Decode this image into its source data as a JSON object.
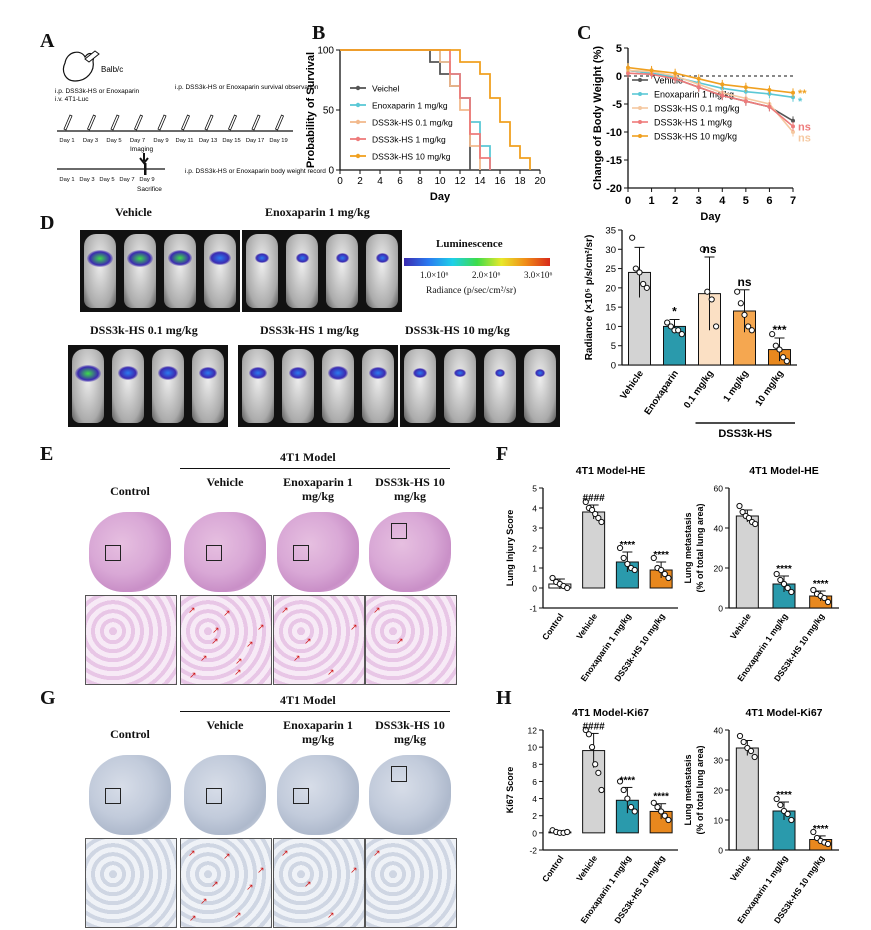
{
  "labels": {
    "A": "A",
    "B": "B",
    "C": "C",
    "D": "D",
    "E": "E",
    "F": "F",
    "G": "G",
    "H": "H"
  },
  "panelA": {
    "mouse": "Balb/c",
    "drug_text": "i.p. DSS3k-HS or Enoxaparin",
    "iv_text": "i.v. 4T1-Luc",
    "survival_text": "i.p. DSS3k-HS or Enoxaparin survival observation",
    "days_top": [
      "Day 1",
      "Day 3",
      "Day 5",
      "Day 7",
      "Day 9",
      "Day 11",
      "Day 13",
      "Day 15",
      "Day 17",
      "Day 19"
    ],
    "imaging": "Imaging",
    "sacrifice": "Sacrifice",
    "days_bottom": [
      "Day 1",
      "Day 3",
      "Day 5",
      "Day 7",
      "Day 9"
    ],
    "record_text": "i.p. DSS3k-HS or Enoxaparin body weight record"
  },
  "panelD": {
    "groups": [
      "Vehicle",
      "Enoxaparin 1 mg/kg",
      "DSS3k-HS 0.1 mg/kg",
      "DSS3k-HS 1 mg/kg",
      "DSS3k-HS 10 mg/kg"
    ],
    "scale_title": "Luminescence",
    "scale_ticks": [
      "1.0×10⁶",
      "2.0×10⁶",
      "3.0×10⁶"
    ],
    "scale_unit": "Radiance (p/sec/cm²/sr)"
  },
  "panelE": {
    "header": "4T1 Model",
    "cols": [
      "Control",
      "Vehicle",
      "Enoxaparin 1 mg/kg",
      "DSS3k-HS 10 mg/kg"
    ]
  },
  "panelG": {
    "header": "4T1 Model",
    "cols": [
      "Control",
      "Vehicle",
      "Enoxaparin 1 mg/kg",
      "DSS3k-HS 10 mg/kg"
    ]
  },
  "chart_data": [
    {
      "id": "B",
      "type": "line",
      "xlabel": "Day",
      "ylabel": "Probability of Survival",
      "xlim": [
        0,
        20
      ],
      "ylim": [
        0,
        100
      ],
      "xticks": [
        0,
        2,
        4,
        6,
        8,
        10,
        12,
        14,
        16,
        18,
        20
      ],
      "yticks": [
        0,
        50,
        100
      ],
      "series": [
        {
          "name": "Veichel",
          "color": "#555555",
          "x": [
            0,
            9,
            10,
            11,
            12,
            13,
            13
          ],
          "y": [
            100,
            90,
            80,
            70,
            60,
            50,
            0
          ]
        },
        {
          "name": "Enoxaparin 1 mg/kg",
          "color": "#5bc8d6",
          "x": [
            0,
            10,
            11,
            12,
            13,
            14,
            15
          ],
          "y": [
            100,
            90,
            80,
            60,
            40,
            20,
            0
          ]
        },
        {
          "name": "DSS3k-HS 0.1 mg/kg",
          "color": "#f2b98c",
          "x": [
            0,
            10,
            11,
            12,
            13,
            14
          ],
          "y": [
            100,
            90,
            70,
            50,
            20,
            0
          ]
        },
        {
          "name": "DSS3k-HS 1 mg/kg",
          "color": "#ee7b7b",
          "x": [
            0,
            11,
            12,
            13,
            14,
            15
          ],
          "y": [
            100,
            80,
            60,
            30,
            10,
            0
          ]
        },
        {
          "name": "DSS3k-HS 10 mg/kg",
          "color": "#f0a020",
          "x": [
            0,
            12,
            14,
            15,
            16,
            17,
            18,
            19
          ],
          "y": [
            100,
            90,
            80,
            60,
            40,
            20,
            10,
            0
          ]
        }
      ]
    },
    {
      "id": "C",
      "type": "line",
      "xlabel": "Day",
      "ylabel": "Change of Body Weight (%)",
      "xlim": [
        0,
        7
      ],
      "ylim": [
        -20,
        5
      ],
      "xticks": [
        0,
        1,
        2,
        3,
        4,
        5,
        6,
        7
      ],
      "yticks": [
        5,
        0,
        -5,
        -10,
        -15,
        -20
      ],
      "x": [
        0,
        1,
        2,
        3,
        4,
        5,
        6,
        7
      ],
      "series": [
        {
          "name": "Vehicle",
          "color": "#555555",
          "values": [
            1,
            0.5,
            -0.5,
            -2,
            -3.5,
            -4.5,
            -5.5,
            -8
          ]
        },
        {
          "name": "Enoxaparin 1 mg/kg",
          "color": "#5bc8d6",
          "values": [
            1,
            0.5,
            -0.2,
            -1.2,
            -2.2,
            -2.8,
            -3.2,
            -3.8
          ]
        },
        {
          "name": "DSS3k-HS 0.1 mg/kg",
          "color": "#f5c8a0",
          "values": [
            1,
            0.8,
            0,
            -1.5,
            -3,
            -4,
            -5,
            -10
          ]
        },
        {
          "name": "DSS3k-HS 1 mg/kg",
          "color": "#ee7b7b",
          "values": [
            0.5,
            0.3,
            -0.5,
            -2,
            -3.5,
            -4.5,
            -5.5,
            -9
          ]
        },
        {
          "name": "DSS3k-HS 10 mg/kg",
          "color": "#f0a020",
          "values": [
            1.5,
            1,
            0.5,
            -0.5,
            -1.5,
            -2,
            -2.5,
            -3
          ]
        }
      ],
      "annotations": [
        {
          "text": "**",
          "y": -3,
          "color": "#f0a020"
        },
        {
          "text": "*",
          "y": -4.5,
          "color": "#5bc8d6"
        },
        {
          "text": "ns",
          "y": -9,
          "color": "#ee7b7b"
        },
        {
          "text": "ns",
          "y": -11,
          "color": "#f5c8a0"
        }
      ]
    },
    {
      "id": "D",
      "type": "bar",
      "ylabel": "Radiance (×10⁵ p/s/cm²/sr)",
      "ylim": [
        0,
        35
      ],
      "yticks": [
        0,
        5,
        10,
        15,
        20,
        25,
        30,
        35
      ],
      "categories": [
        "Vehicle",
        "Enoxaparin",
        "0.1 mg/kg",
        "1 mg/kg",
        "10 mg/kg"
      ],
      "group_label": "DSS3k-HS",
      "values": [
        24,
        10,
        18.5,
        14,
        4
      ],
      "errors": [
        6.5,
        1.8,
        9.5,
        5.5,
        3
      ],
      "colors": [
        "#d3d3d3",
        "#2a9aac",
        "#fbe0c4",
        "#f5a750",
        "#e8881e"
      ],
      "sig": [
        "",
        "*",
        "ns",
        "ns",
        "***"
      ],
      "points": [
        [
          33,
          25,
          24,
          21,
          20
        ],
        [
          11,
          10,
          9,
          9,
          8
        ],
        [
          30,
          19,
          17,
          10
        ],
        [
          19,
          16,
          13,
          10,
          9
        ],
        [
          8,
          5,
          4,
          2,
          1
        ]
      ]
    },
    {
      "id": "F1",
      "type": "bar",
      "title": "4T1 Model-HE",
      "ylabel": "Lung Injury Score",
      "ylim": [
        -1,
        5
      ],
      "yticks": [
        -1,
        0,
        1,
        2,
        3,
        4,
        5
      ],
      "categories": [
        "Control",
        "Vehicle",
        "Enoxaparin 1 mg/kg",
        "DSS3k-HS 10 mg/kg"
      ],
      "values": [
        0.2,
        3.8,
        1.3,
        0.9
      ],
      "errors": [
        0.25,
        0.35,
        0.5,
        0.4
      ],
      "colors": [
        "#ffffff",
        "#d3d3d3",
        "#2a9aac",
        "#e8881e"
      ],
      "sig": [
        "",
        "####",
        "****",
        "****"
      ],
      "points": [
        [
          0.5,
          0.3,
          0.2,
          0.1,
          0
        ],
        [
          4.3,
          4,
          3.9,
          3.7,
          3.5,
          3.3
        ],
        [
          2,
          1.5,
          1.2,
          1,
          0.9
        ],
        [
          1.5,
          1,
          0.9,
          0.7,
          0.5
        ]
      ]
    },
    {
      "id": "F2",
      "type": "bar",
      "title": "4T1 Model-HE",
      "ylabel": "Lung metastasis (% of total lung area)",
      "ylim": [
        0,
        60
      ],
      "yticks": [
        0,
        20,
        40,
        60
      ],
      "categories": [
        "Vehicle",
        "Enoxaparin 1 mg/kg",
        "DSS3k-HS 10 mg/kg"
      ],
      "values": [
        46,
        12,
        6
      ],
      "errors": [
        3,
        4,
        2.5
      ],
      "colors": [
        "#d3d3d3",
        "#2a9aac",
        "#e8881e"
      ],
      "sig": [
        "",
        "****",
        "****"
      ],
      "points": [
        [
          51,
          48,
          46,
          45,
          43,
          42
        ],
        [
          17,
          14,
          12,
          10,
          8
        ],
        [
          9,
          7,
          6,
          5,
          3
        ]
      ]
    },
    {
      "id": "H1",
      "type": "bar",
      "title": "4T1 Model-Ki67",
      "ylabel": "Ki67 Score",
      "ylim": [
        -2,
        12
      ],
      "yticks": [
        -2,
        0,
        2,
        4,
        6,
        8,
        10,
        12
      ],
      "categories": [
        "Control",
        "Vehicle",
        "Enoxaparin 1 mg/kg",
        "DSS3k-HS 10 mg/kg"
      ],
      "values": [
        0.1,
        9.6,
        3.8,
        2.5
      ],
      "errors": [
        0.15,
        2,
        1.5,
        0.9
      ],
      "colors": [
        "#ffffff",
        "#d3d3d3",
        "#2a9aac",
        "#e8881e"
      ],
      "sig": [
        "",
        "####",
        "****",
        "****"
      ],
      "points": [
        [
          0.3,
          0.1,
          0,
          0,
          0.1
        ],
        [
          12,
          11.5,
          10,
          8,
          7,
          5
        ],
        [
          6,
          5,
          4,
          3,
          2.5
        ],
        [
          3.5,
          3,
          2.5,
          2,
          1.5
        ]
      ]
    },
    {
      "id": "H2",
      "type": "bar",
      "title": "4T1 Model-Ki67",
      "ylabel": "Lung metastasis (% of total lung area)",
      "ylim": [
        0,
        40
      ],
      "yticks": [
        0,
        10,
        20,
        30,
        40
      ],
      "categories": [
        "Vehicle",
        "Enoxaparin 1 mg/kg",
        "DSS3k-HS 10 mg/kg"
      ],
      "values": [
        34,
        13,
        3.5
      ],
      "errors": [
        2.5,
        3,
        1.2
      ],
      "colors": [
        "#d3d3d3",
        "#2a9aac",
        "#e8881e"
      ],
      "sig": [
        "",
        "****",
        "****"
      ],
      "points": [
        [
          38,
          36,
          34,
          33,
          31
        ],
        [
          17,
          15,
          13,
          12,
          10
        ],
        [
          6,
          4,
          3,
          2.5,
          2
        ]
      ]
    }
  ]
}
